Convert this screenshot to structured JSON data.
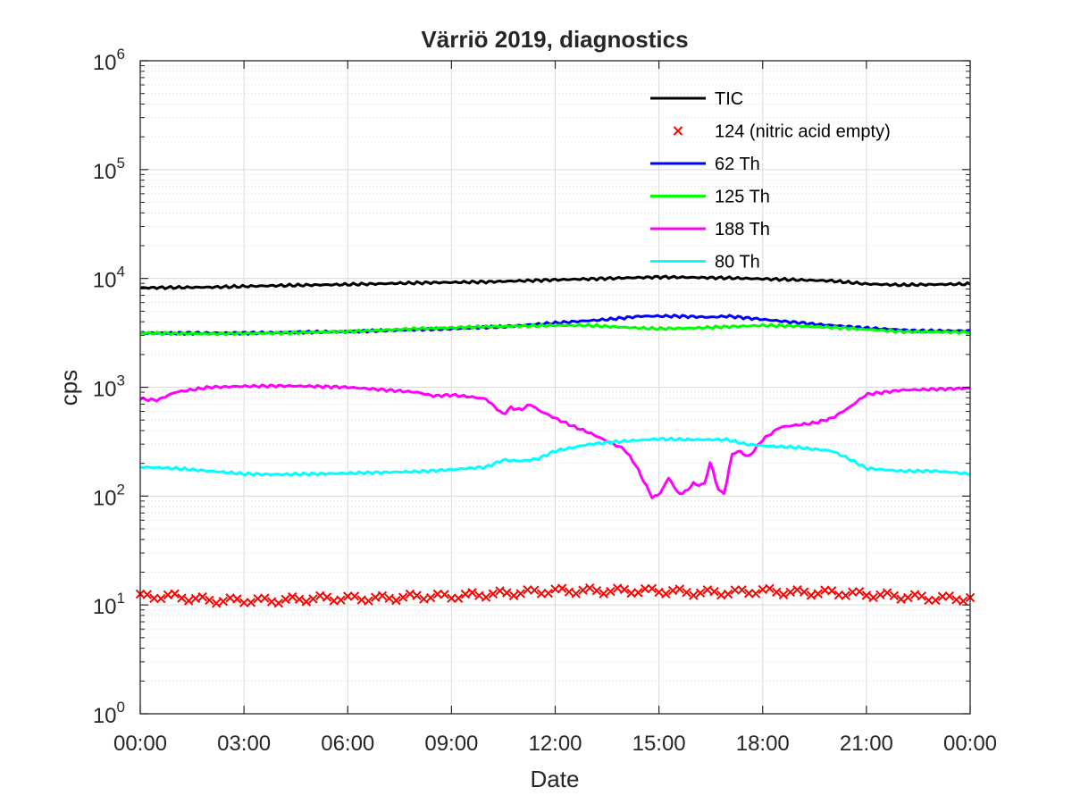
{
  "chart_data": {
    "type": "line",
    "title": "Värriö 2019, diagnostics",
    "xlabel": "Date",
    "ylabel": "cps",
    "yscale": "log",
    "ylim": [
      1,
      1000000
    ],
    "xlim_hours": [
      0,
      24
    ],
    "x_tick_labels": [
      "00:00",
      "03:00",
      "06:00",
      "09:00",
      "12:00",
      "15:00",
      "18:00",
      "21:00",
      "00:00"
    ],
    "y_tick_bases": [
      "10",
      "10",
      "10",
      "10",
      "10",
      "10",
      "10"
    ],
    "y_tick_exponents": [
      "0",
      "1",
      "2",
      "3",
      "4",
      "5",
      "6"
    ],
    "grid": true,
    "legend_position": "top-right (inside)",
    "x_unit": "hours (00:00 to 24:00)",
    "series": [
      {
        "name": "TIC",
        "color": "#000000",
        "style": "line",
        "x": [
          0,
          2,
          4,
          6,
          8,
          10,
          12,
          14,
          15,
          16,
          17,
          18,
          20,
          21,
          22,
          24
        ],
        "y": [
          8200,
          8300,
          8600,
          8800,
          9100,
          9300,
          9700,
          10100,
          10300,
          10200,
          10100,
          9900,
          9500,
          8900,
          8700,
          8900
        ]
      },
      {
        "name": "124 (nitric acid empty)",
        "color": "#ff0000",
        "style": "marker-x",
        "x": [
          0,
          1,
          2,
          3,
          4,
          5,
          6,
          7,
          8,
          9,
          10,
          11,
          12,
          13,
          14,
          15,
          16,
          17,
          18,
          19,
          20,
          21,
          22,
          23,
          24
        ],
        "y": [
          12,
          12,
          11,
          11,
          11,
          11.5,
          11.5,
          11.5,
          12,
          12,
          12.5,
          13,
          13.5,
          13.5,
          13.5,
          13.5,
          13,
          13,
          13.5,
          13,
          13,
          12.5,
          12,
          11.5,
          11.5
        ]
      },
      {
        "name": "62 Th",
        "color": "#0000ff",
        "style": "line",
        "x": [
          0,
          3,
          6,
          9,
          10.5,
          12,
          13.5,
          14.5,
          15.5,
          16.5,
          17,
          18,
          19.5,
          21,
          22.5,
          24
        ],
        "y": [
          3150,
          3150,
          3250,
          3450,
          3600,
          3900,
          4200,
          4500,
          4500,
          4400,
          4500,
          4200,
          3800,
          3500,
          3300,
          3300
        ]
      },
      {
        "name": "125 Th",
        "color": "#00ff00",
        "style": "line",
        "x": [
          0,
          2,
          4,
          6,
          8,
          10,
          12,
          13,
          14,
          15,
          16,
          17,
          18,
          19,
          20,
          21,
          22,
          24
        ],
        "y": [
          3150,
          3100,
          3150,
          3250,
          3450,
          3600,
          3700,
          3700,
          3550,
          3450,
          3500,
          3600,
          3700,
          3650,
          3550,
          3400,
          3250,
          3200
        ]
      },
      {
        "name": "188 Th",
        "color": "#ff00ff",
        "style": "line",
        "x": [
          0,
          0.5,
          1,
          2,
          3,
          4,
          5,
          6,
          7,
          8,
          8.5,
          9,
          9.5,
          10,
          10.3,
          10.5,
          10.7,
          11,
          11.3,
          11.5,
          12,
          12.5,
          13,
          13.5,
          14,
          14.3,
          14.6,
          14.8,
          15,
          15.3,
          15.5,
          15.7,
          16,
          16.3,
          16.5,
          16.7,
          16.9,
          17.1,
          17.3,
          17.6,
          18,
          18.5,
          19,
          19.5,
          20,
          20.5,
          21,
          22,
          23,
          24
        ],
        "y": [
          780,
          760,
          900,
          1000,
          1020,
          1030,
          1020,
          1000,
          950,
          900,
          830,
          850,
          820,
          780,
          640,
          560,
          650,
          620,
          700,
          620,
          520,
          440,
          380,
          320,
          270,
          200,
          130,
          98,
          102,
          150,
          110,
          105,
          130,
          125,
          210,
          115,
          105,
          240,
          260,
          230,
          330,
          430,
          450,
          470,
          520,
          650,
          860,
          940,
          960,
          980
        ]
      },
      {
        "name": "80 Th",
        "color": "#00ffff",
        "style": "line",
        "x": [
          0,
          1,
          2,
          3,
          4,
          5,
          6,
          7,
          8,
          9,
          10,
          10.5,
          11,
          11.5,
          12,
          13,
          14,
          15,
          16,
          17,
          17.5,
          18,
          19,
          20,
          20.5,
          21,
          22,
          23,
          24
        ],
        "y": [
          185,
          180,
          170,
          160,
          158,
          160,
          162,
          165,
          168,
          175,
          185,
          215,
          210,
          220,
          260,
          300,
          320,
          335,
          330,
          330,
          300,
          290,
          280,
          260,
          220,
          180,
          170,
          170,
          160
        ]
      }
    ]
  }
}
